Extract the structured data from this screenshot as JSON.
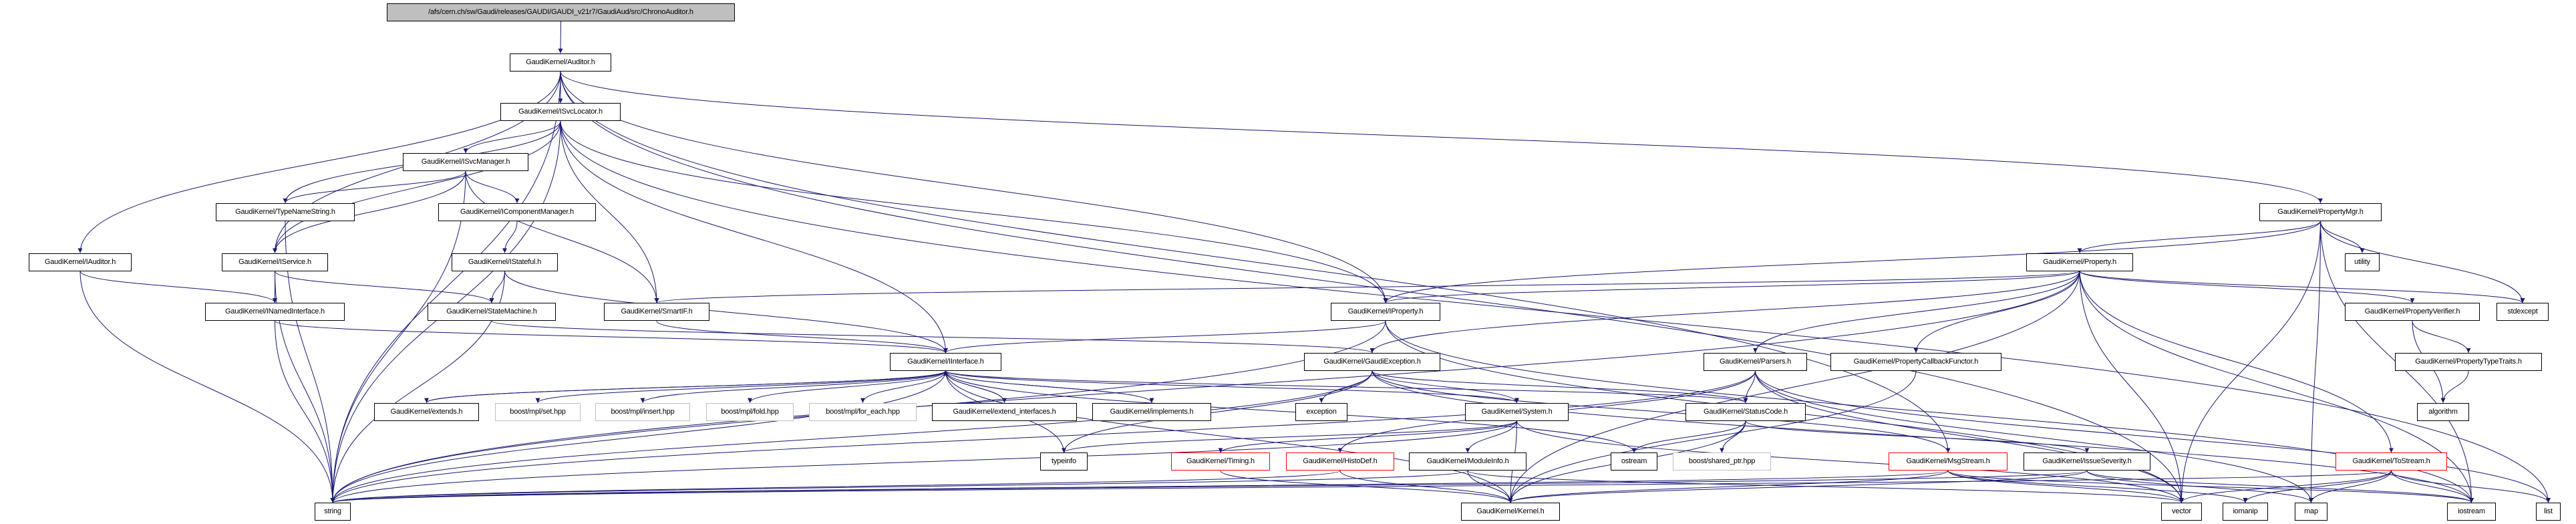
{
  "colors": {
    "edge": "#191970",
    "root_fill": "#bfbfbf",
    "missing_border": "#ff0000",
    "external_border": "#bfbfbf",
    "node_border": "#000000"
  },
  "nodes": [
    {
      "id": "root",
      "label": "/afs/cern.ch/sw/Gaudi/releases/GAUDI/GAUDI_v21r7/GaudiAud/src/ChronoAuditor.h",
      "style": "root"
    },
    {
      "id": "auditor",
      "label": "GaudiKernel/Auditor.h",
      "style": "normal"
    },
    {
      "id": "isvclocator",
      "label": "GaudiKernel/ISvcLocator.h",
      "style": "normal"
    },
    {
      "id": "isvcmanager",
      "label": "GaudiKernel/ISvcManager.h",
      "style": "normal"
    },
    {
      "id": "typenamestring",
      "label": "GaudiKernel/TypeNameString.h",
      "style": "normal"
    },
    {
      "id": "icomponentmanager",
      "label": "GaudiKernel/IComponentManager.h",
      "style": "normal"
    },
    {
      "id": "iauditor",
      "label": "GaudiKernel/IAuditor.h",
      "style": "normal"
    },
    {
      "id": "iservice",
      "label": "GaudiKernel/IService.h",
      "style": "normal"
    },
    {
      "id": "istateful",
      "label": "GaudiKernel/IStateful.h",
      "style": "normal"
    },
    {
      "id": "inamedinterface",
      "label": "GaudiKernel/INamedInterface.h",
      "style": "normal"
    },
    {
      "id": "statemachine",
      "label": "GaudiKernel/StateMachine.h",
      "style": "normal"
    },
    {
      "id": "smartif",
      "label": "GaudiKernel/SmartIF.h",
      "style": "normal"
    },
    {
      "id": "iinterface",
      "label": "GaudiKernel/IInterface.h",
      "style": "normal"
    },
    {
      "id": "extends",
      "label": "GaudiKernel/extends.h",
      "style": "normal"
    },
    {
      "id": "mplset",
      "label": "boost/mpl/set.hpp",
      "style": "gray"
    },
    {
      "id": "mplinsert",
      "label": "boost/mpl/insert.hpp",
      "style": "gray"
    },
    {
      "id": "mplfold",
      "label": "boost/mpl/fold.hpp",
      "style": "gray"
    },
    {
      "id": "mplforeach",
      "label": "boost/mpl/for_each.hpp",
      "style": "gray"
    },
    {
      "id": "extendinterfaces",
      "label": "GaudiKernel/extend_interfaces.h",
      "style": "normal"
    },
    {
      "id": "implements",
      "label": "GaudiKernel/implements.h",
      "style": "normal"
    },
    {
      "id": "exception",
      "label": "exception",
      "style": "normal"
    },
    {
      "id": "typeinfo",
      "label": "typeinfo",
      "style": "normal"
    },
    {
      "id": "timing",
      "label": "GaudiKernel/Timing.h",
      "style": "red"
    },
    {
      "id": "histodef",
      "label": "GaudiKernel/HistoDef.h",
      "style": "red"
    },
    {
      "id": "gaudiexception",
      "label": "GaudiKernel/GaudiException.h",
      "style": "normal"
    },
    {
      "id": "iproperty",
      "label": "GaudiKernel/IProperty.h",
      "style": "normal"
    },
    {
      "id": "parsers",
      "label": "GaudiKernel/Parsers.h",
      "style": "normal"
    },
    {
      "id": "propertycallbackfunctor",
      "label": "GaudiKernel/PropertyCallbackFunctor.h",
      "style": "normal"
    },
    {
      "id": "system",
      "label": "GaudiKernel/System.h",
      "style": "normal"
    },
    {
      "id": "statuscode",
      "label": "GaudiKernel/StatusCode.h",
      "style": "normal"
    },
    {
      "id": "moduleinfo",
      "label": "GaudiKernel/ModuleInfo.h",
      "style": "normal"
    },
    {
      "id": "ostream",
      "label": "ostream",
      "style": "normal"
    },
    {
      "id": "sharedptr",
      "label": "boost/shared_ptr.hpp",
      "style": "gray"
    },
    {
      "id": "msgstream",
      "label": "GaudiKernel/MsgStream.h",
      "style": "red"
    },
    {
      "id": "kernel",
      "label": "GaudiKernel/Kernel.h",
      "style": "normal"
    },
    {
      "id": "string",
      "label": "string",
      "style": "normal"
    },
    {
      "id": "property",
      "label": "GaudiKernel/Property.h",
      "style": "normal"
    },
    {
      "id": "propertymgr",
      "label": "GaudiKernel/PropertyMgr.h",
      "style": "normal"
    },
    {
      "id": "utility",
      "label": "utility",
      "style": "normal"
    },
    {
      "id": "propertyverifier",
      "label": "GaudiKernel/PropertyVerifier.h",
      "style": "normal"
    },
    {
      "id": "stdexcept",
      "label": "stdexcept",
      "style": "normal"
    },
    {
      "id": "propertytypetraits",
      "label": "GaudiKernel/PropertyTypeTraits.h",
      "style": "normal"
    },
    {
      "id": "algorithm",
      "label": "algorithm",
      "style": "normal"
    },
    {
      "id": "issueseverity",
      "label": "GaudiKernel/IssueSeverity.h",
      "style": "normal"
    },
    {
      "id": "tostream",
      "label": "GaudiKernel/ToStream.h",
      "style": "red"
    },
    {
      "id": "vector",
      "label": "vector",
      "style": "normal"
    },
    {
      "id": "iomanip",
      "label": "iomanip",
      "style": "normal"
    },
    {
      "id": "map",
      "label": "map",
      "style": "normal"
    },
    {
      "id": "iostream",
      "label": "iostream",
      "style": "normal"
    },
    {
      "id": "list",
      "label": "list",
      "style": "normal"
    }
  ],
  "edges": [
    [
      "root",
      "auditor"
    ],
    [
      "auditor",
      "isvclocator"
    ],
    [
      "auditor",
      "iauditor"
    ],
    [
      "auditor",
      "iservice"
    ],
    [
      "auditor",
      "string"
    ],
    [
      "auditor",
      "propertymgr"
    ],
    [
      "auditor",
      "iproperty"
    ],
    [
      "auditor",
      "msgstream"
    ],
    [
      "auditor",
      "vector"
    ],
    [
      "isvclocator",
      "isvcmanager"
    ],
    [
      "isvclocator",
      "typenamestring"
    ],
    [
      "isvclocator",
      "iservice"
    ],
    [
      "isvclocator",
      "string"
    ],
    [
      "isvclocator",
      "iinterface"
    ],
    [
      "isvclocator",
      "smartif"
    ],
    [
      "isvclocator",
      "iproperty"
    ],
    [
      "isvclocator",
      "list"
    ],
    [
      "isvcmanager",
      "typenamestring"
    ],
    [
      "isvcmanager",
      "icomponentmanager"
    ],
    [
      "isvcmanager",
      "iservice"
    ],
    [
      "isvcmanager",
      "string"
    ],
    [
      "isvcmanager",
      "smartif"
    ],
    [
      "typenamestring",
      "string"
    ],
    [
      "icomponentmanager",
      "istateful"
    ],
    [
      "istateful",
      "statemachine"
    ],
    [
      "istateful",
      "iinterface"
    ],
    [
      "istateful",
      "string"
    ],
    [
      "iauditor",
      "inamedinterface"
    ],
    [
      "iauditor",
      "string"
    ],
    [
      "iservice",
      "inamedinterface"
    ],
    [
      "iservice",
      "statemachine"
    ],
    [
      "iservice",
      "string"
    ],
    [
      "inamedinterface",
      "iinterface"
    ],
    [
      "inamedinterface",
      "string"
    ],
    [
      "statemachine",
      "gaudiexception"
    ],
    [
      "smartif",
      "iinterface"
    ],
    [
      "iinterface",
      "extends"
    ],
    [
      "iinterface",
      "mplset"
    ],
    [
      "iinterface",
      "mplinsert"
    ],
    [
      "iinterface",
      "mplfold"
    ],
    [
      "iinterface",
      "mplforeach"
    ],
    [
      "iinterface",
      "extendinterfaces"
    ],
    [
      "iinterface",
      "implements"
    ],
    [
      "iinterface",
      "system"
    ],
    [
      "iinterface",
      "statuscode"
    ],
    [
      "iinterface",
      "ostream"
    ],
    [
      "iinterface",
      "typeinfo"
    ],
    [
      "iinterface",
      "string"
    ],
    [
      "iinterface",
      "kernel"
    ],
    [
      "extends",
      "iinterface"
    ],
    [
      "extendinterfaces",
      "iinterface"
    ],
    [
      "implements",
      "iinterface"
    ],
    [
      "gaudiexception",
      "statuscode"
    ],
    [
      "gaudiexception",
      "system"
    ],
    [
      "gaudiexception",
      "exception"
    ],
    [
      "gaudiexception",
      "string"
    ],
    [
      "gaudiexception",
      "iostream"
    ],
    [
      "gaudiexception",
      "msgstream"
    ],
    [
      "gaudiexception",
      "typeinfo"
    ],
    [
      "iproperty",
      "iinterface"
    ],
    [
      "iproperty",
      "string"
    ],
    [
      "iproperty",
      "vector"
    ],
    [
      "iproperty",
      "iostream"
    ],
    [
      "propertymgr",
      "property"
    ],
    [
      "propertymgr",
      "iproperty"
    ],
    [
      "propertymgr",
      "utility"
    ],
    [
      "propertymgr",
      "stdexcept"
    ],
    [
      "propertymgr",
      "vector"
    ],
    [
      "propertymgr",
      "iostream"
    ],
    [
      "propertymgr",
      "map"
    ],
    [
      "property",
      "iproperty"
    ],
    [
      "property",
      "smartif"
    ],
    [
      "property",
      "parsers"
    ],
    [
      "property",
      "propertycallbackfunctor"
    ],
    [
      "property",
      "propertyverifier"
    ],
    [
      "property",
      "tostream"
    ],
    [
      "property",
      "stdexcept"
    ],
    [
      "property",
      "string"
    ],
    [
      "property",
      "kernel"
    ],
    [
      "property",
      "vector"
    ],
    [
      "property",
      "iostream"
    ],
    [
      "property",
      "gaudiexception"
    ],
    [
      "parsers",
      "statuscode"
    ],
    [
      "parsers",
      "histodef"
    ],
    [
      "parsers",
      "vector"
    ],
    [
      "parsers",
      "map"
    ],
    [
      "parsers",
      "string"
    ],
    [
      "parsers",
      "list"
    ],
    [
      "propertycallbackfunctor",
      "kernel"
    ],
    [
      "propertyverifier",
      "propertytypetraits"
    ],
    [
      "propertyverifier",
      "algorithm"
    ],
    [
      "propertytypetraits",
      "algorithm"
    ],
    [
      "system",
      "kernel"
    ],
    [
      "system",
      "moduleinfo"
    ],
    [
      "system",
      "typeinfo"
    ],
    [
      "system",
      "string"
    ],
    [
      "system",
      "vector"
    ],
    [
      "system",
      "timing"
    ],
    [
      "timing",
      "kernel"
    ],
    [
      "histodef",
      "string"
    ],
    [
      "histodef",
      "kernel"
    ],
    [
      "moduleinfo",
      "kernel"
    ],
    [
      "moduleinfo",
      "string"
    ],
    [
      "moduleinfo",
      "vector"
    ],
    [
      "statuscode",
      "ostream"
    ],
    [
      "statuscode",
      "sharedptr"
    ],
    [
      "statuscode",
      "issueseverity"
    ],
    [
      "statuscode",
      "kernel"
    ],
    [
      "msgstream",
      "string"
    ],
    [
      "msgstream",
      "iomanip"
    ],
    [
      "msgstream",
      "vector"
    ],
    [
      "msgstream",
      "iostream"
    ],
    [
      "msgstream",
      "kernel"
    ],
    [
      "issueseverity",
      "map"
    ],
    [
      "issueseverity",
      "iostream"
    ],
    [
      "issueseverity",
      "string"
    ],
    [
      "issueseverity",
      "kernel"
    ],
    [
      "tostream",
      "string"
    ],
    [
      "tostream",
      "vector"
    ],
    [
      "tostream",
      "map"
    ],
    [
      "tostream",
      "iomanip"
    ],
    [
      "tostream",
      "iostream"
    ],
    [
      "tostream",
      "list"
    ]
  ]
}
